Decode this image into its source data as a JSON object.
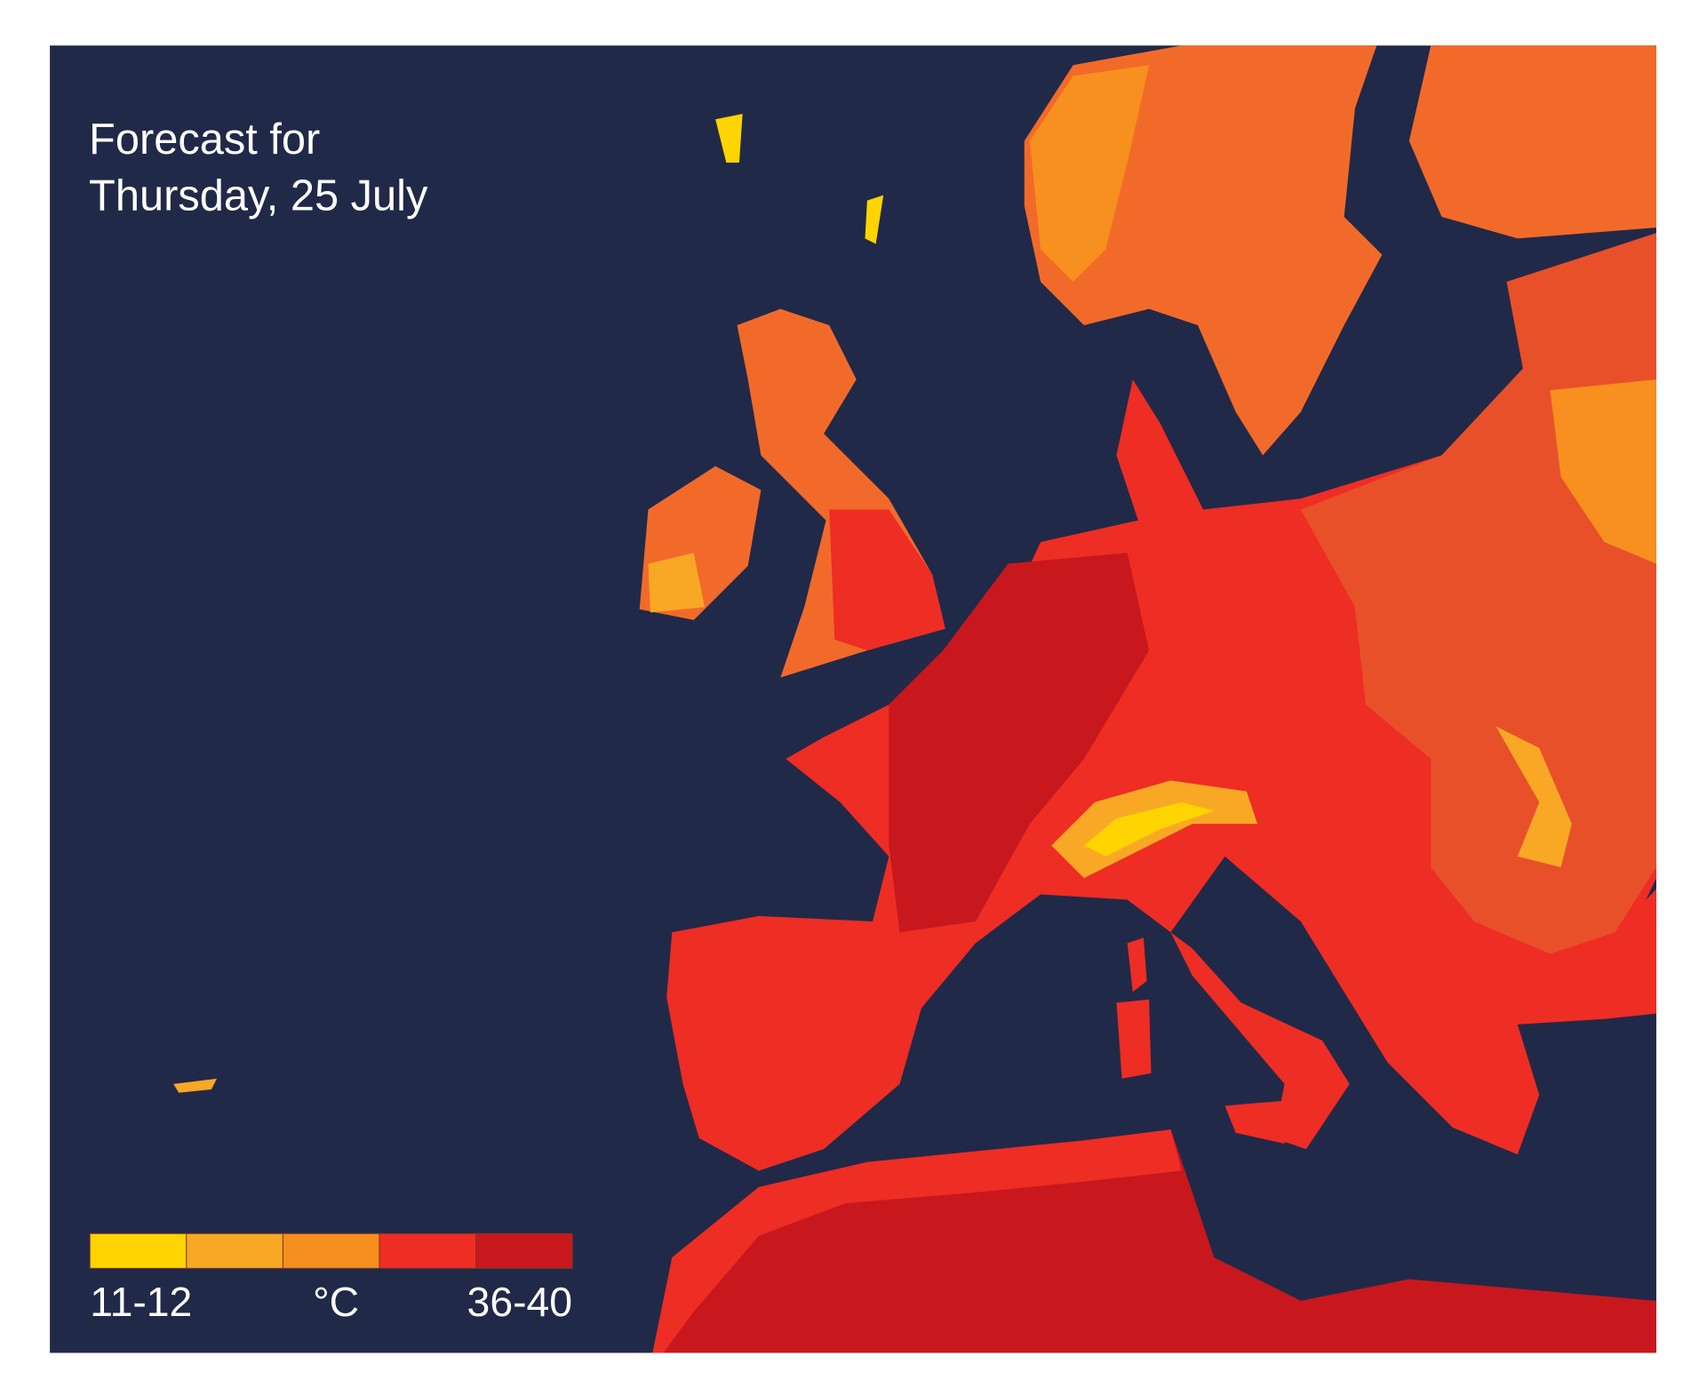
{
  "title": [
    "Forecast for",
    "Thursday, 25 July"
  ],
  "legend": {
    "colors": [
      "#ffd400",
      "#f9a825",
      "#f78f1e",
      "#ee2d24",
      "#c9171e"
    ],
    "labels": {
      "low": "11-12",
      "unit": "°C",
      "high": "36-40"
    }
  }
}
